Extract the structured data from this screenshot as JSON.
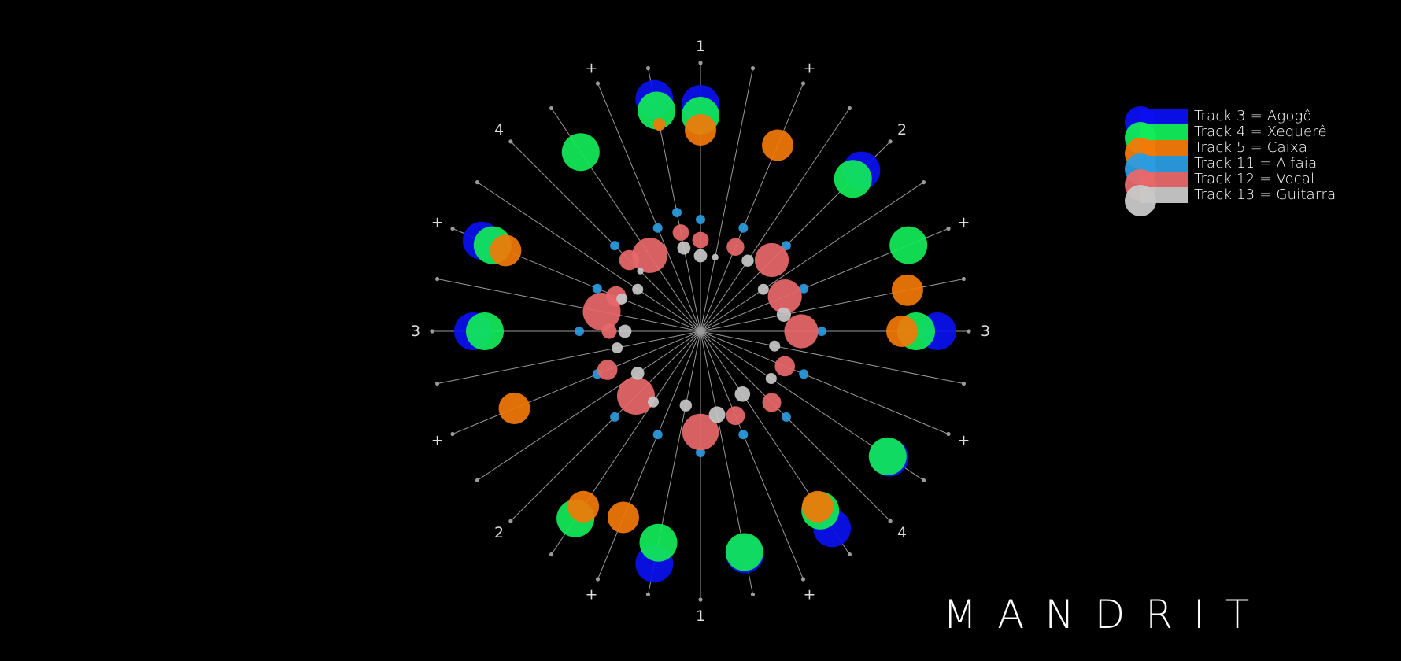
{
  "title": "MANDRIT",
  "beat_labels": [
    "1",
    "+",
    "2",
    "+",
    "3",
    "+",
    "4",
    "+",
    "1",
    "+",
    "2",
    "+",
    "3",
    "+",
    "4",
    "+"
  ],
  "colors": {
    "background": "#000000",
    "spoke": "#9a9a9a",
    "track3": "#0a10f0",
    "track4": "#12ec58",
    "track5": "#f27a08",
    "track11": "#2b9ce0",
    "track12": "#e8686a",
    "track13": "#c8c8c8"
  },
  "legend": [
    {
      "label": "Track 3 = Agogô",
      "color": "#0a10f0"
    },
    {
      "label": "Track 4 = Xequerê",
      "color": "#12ec58"
    },
    {
      "label": "Track 5 = Caixa",
      "color": "#f27a08"
    },
    {
      "label": "Track 11 = Alfaia",
      "color": "#2b9ce0"
    },
    {
      "label": "Track 12 = Vocal",
      "color": "#e8686a"
    },
    {
      "label": "Track 13 = Guitarra",
      "color": "#c8c8c8"
    }
  ],
  "chart_data": {
    "type": "radial",
    "subdivisions": 32,
    "series": [
      {
        "name": "Track 3 = Agogô",
        "events": [
          {
            "step": 0,
            "size": 3
          },
          {
            "step": 31,
            "size": 3
          },
          {
            "step": 4,
            "size": 3
          },
          {
            "step": 8,
            "size": 3
          },
          {
            "step": 11,
            "size": 3
          },
          {
            "step": 13,
            "size": 3
          },
          {
            "step": 15,
            "size": 3
          },
          {
            "step": 17,
            "size": 3
          },
          {
            "step": 24,
            "size": 3
          },
          {
            "step": 26,
            "size": 3
          }
        ]
      },
      {
        "name": "Track 4 = Xequerê",
        "events": [
          {
            "step": 0,
            "size": 3
          },
          {
            "step": 31,
            "size": 3
          },
          {
            "step": 4,
            "size": 3
          },
          {
            "step": 6,
            "size": 3
          },
          {
            "step": 8,
            "size": 3
          },
          {
            "step": 11,
            "size": 3
          },
          {
            "step": 13,
            "size": 3
          },
          {
            "step": 15,
            "size": 3
          },
          {
            "step": 17,
            "size": 3
          },
          {
            "step": 19,
            "size": 3
          },
          {
            "step": 24,
            "size": 3
          },
          {
            "step": 26,
            "size": 3
          },
          {
            "step": 29,
            "size": 3
          }
        ]
      },
      {
        "name": "Track 5 = Caixa",
        "events": [
          {
            "step": 0,
            "size": 2.5
          },
          {
            "step": 31,
            "size": 1
          },
          {
            "step": 2,
            "size": 2.5
          },
          {
            "step": 7,
            "size": 2.5
          },
          {
            "step": 8,
            "size": 2.5
          },
          {
            "step": 13,
            "size": 2.5
          },
          {
            "step": 18,
            "size": 2.5
          },
          {
            "step": 19,
            "size": 2.5
          },
          {
            "step": 22,
            "size": 2.5
          },
          {
            "step": 26,
            "size": 2.5
          }
        ]
      },
      {
        "name": "Track 11 = Alfaia",
        "events": [
          {
            "step": 0,
            "size": 1
          },
          {
            "step": 31,
            "size": 1
          },
          {
            "step": 2,
            "size": 1
          },
          {
            "step": 4,
            "size": 1
          },
          {
            "step": 6,
            "size": 1
          },
          {
            "step": 8,
            "size": 1
          },
          {
            "step": 10,
            "size": 1
          },
          {
            "step": 12,
            "size": 1
          },
          {
            "step": 14,
            "size": 1
          },
          {
            "step": 16,
            "size": 1
          },
          {
            "step": 18,
            "size": 1
          },
          {
            "step": 20,
            "size": 1
          },
          {
            "step": 22,
            "size": 1
          },
          {
            "step": 24,
            "size": 1
          },
          {
            "step": 26,
            "size": 1
          },
          {
            "step": 28,
            "size": 1
          },
          {
            "step": 30,
            "size": 1
          }
        ]
      },
      {
        "name": "Track 12 = Vocal",
        "events": [
          {
            "step": 0,
            "size": 1.3
          },
          {
            "step": 31,
            "size": 1.3
          },
          {
            "step": 2,
            "size": 1.4
          },
          {
            "step": 4,
            "size": 2.7
          },
          {
            "step": 6,
            "size": 2.7
          },
          {
            "step": 8,
            "size": 2.7
          },
          {
            "step": 10,
            "size": 1.6
          },
          {
            "step": 12,
            "size": 1.5
          },
          {
            "step": 14,
            "size": 1.5
          },
          {
            "step": 16,
            "size": 2.9
          },
          {
            "step": 20,
            "size": 3.0
          },
          {
            "step": 22,
            "size": 1.6
          },
          {
            "step": 24,
            "size": 1.2
          },
          {
            "step": 25,
            "size": 3.0
          },
          {
            "step": 26,
            "size": 1.6
          },
          {
            "step": 28,
            "size": 1.6
          },
          {
            "step": 29,
            "size": 2.8
          }
        ]
      },
      {
        "name": "Track 13 = Guitarra",
        "events": [
          {
            "step": 0,
            "size": 1.2
          },
          {
            "step": 31,
            "size": 1.2
          },
          {
            "step": 1,
            "size": 0.6
          },
          {
            "step": 3,
            "size": 1.1
          },
          {
            "step": 5,
            "size": 1
          },
          {
            "step": 7,
            "size": 1.3
          },
          {
            "step": 9,
            "size": 1
          },
          {
            "step": 11,
            "size": 1
          },
          {
            "step": 13,
            "size": 1.4
          },
          {
            "step": 15,
            "size": 1.5
          },
          {
            "step": 17,
            "size": 1.1
          },
          {
            "step": 19,
            "size": 1
          },
          {
            "step": 21,
            "size": 1.2
          },
          {
            "step": 23,
            "size": 1
          },
          {
            "step": 24,
            "size": 1.2
          },
          {
            "step": 26,
            "size": 1
          },
          {
            "step": 27,
            "size": 1
          },
          {
            "step": 28,
            "size": 0.6
          }
        ]
      }
    ]
  }
}
